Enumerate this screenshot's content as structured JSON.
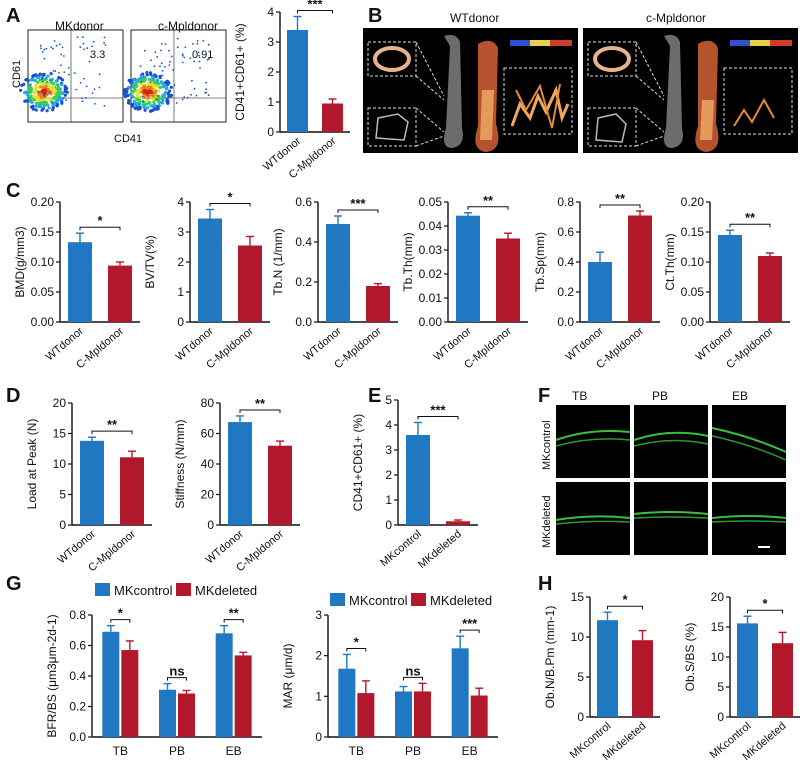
{
  "panels": {
    "A": "A",
    "B": "B",
    "C": "C",
    "D": "D",
    "E": "E",
    "F": "F",
    "G": "G",
    "H": "H"
  },
  "colors": {
    "blue": "#1f78c1",
    "red": "#b2182b"
  },
  "flow": {
    "left_title": "MKdonor",
    "right_title": "c-Mpldonor",
    "left_value": "3.3",
    "right_value": "0.91",
    "xlabel": "CD41",
    "ylabel": "CD61"
  },
  "microct": {
    "left_title": "WTdonor",
    "right_title": "c-Mpldonor"
  },
  "fluor": {
    "columns": [
      "TB",
      "PB",
      "EB"
    ],
    "rows": [
      "MKcontrol",
      "MKdeleted"
    ]
  },
  "legend": {
    "control": "MKcontrol",
    "deleted": "MKdeleted"
  },
  "chart_data": [
    {
      "id": "A_bar",
      "type": "bar",
      "categories": [
        "WTdonor",
        "C-Mpldonor"
      ],
      "values": [
        3.4,
        0.95
      ],
      "errors": [
        0.45,
        0.15
      ],
      "ylabel": "CD41+CD61+ (%)",
      "ylim": [
        0,
        4
      ],
      "yticks": [
        0,
        1,
        2,
        3,
        4
      ],
      "sig": "***"
    },
    {
      "id": "C1",
      "type": "bar",
      "categories": [
        "WTdonor",
        "C-Mpldonor"
      ],
      "values": [
        0.133,
        0.094
      ],
      "errors": [
        0.015,
        0.006
      ],
      "ylabel": "BMD(g/mm3)",
      "ylim": [
        0,
        0.2
      ],
      "yticks": [
        "0.00",
        "0.05",
        "0.10",
        "0.15",
        "0.20"
      ],
      "sig": "*"
    },
    {
      "id": "C2",
      "type": "bar",
      "categories": [
        "WTdonor",
        "C-Mpldonor"
      ],
      "values": [
        3.45,
        2.55
      ],
      "errors": [
        0.3,
        0.3
      ],
      "ylabel": "BV/TV(%)",
      "ylim": [
        0,
        4
      ],
      "yticks": [
        "0",
        "1",
        "2",
        "3",
        "4"
      ],
      "sig": "*"
    },
    {
      "id": "C3",
      "type": "bar",
      "categories": [
        "WTdonor",
        "C-Mpldonor"
      ],
      "values": [
        0.49,
        0.18
      ],
      "errors": [
        0.04,
        0.012
      ],
      "ylabel": "Tb.N (1/mm)",
      "ylim": [
        0,
        0.6
      ],
      "yticks": [
        "0.0",
        "0.2",
        "0.4",
        "0.6"
      ],
      "sig": "***"
    },
    {
      "id": "C4",
      "type": "bar",
      "categories": [
        "WTdonor",
        "C-Mpldonor"
      ],
      "values": [
        0.0443,
        0.0348
      ],
      "errors": [
        0.0012,
        0.0022
      ],
      "ylabel": "Tb.Th(mm)",
      "ylim": [
        0,
        0.05
      ],
      "yticks": [
        "0.00",
        "0.01",
        "0.02",
        "0.03",
        "0.04",
        "0.05"
      ],
      "sig": "**"
    },
    {
      "id": "C5",
      "type": "bar",
      "categories": [
        "WTdonor",
        "C-Mpldonor"
      ],
      "values": [
        0.4,
        0.71
      ],
      "errors": [
        0.065,
        0.03
      ],
      "ylabel": "Tb.Sp(mm)",
      "ylim": [
        0,
        0.8
      ],
      "yticks": [
        "0.0",
        "0.2",
        "0.4",
        "0.6",
        "0.8"
      ],
      "sig": "**"
    },
    {
      "id": "C6",
      "type": "bar",
      "categories": [
        "WTdonor",
        "C-Mpldonor"
      ],
      "values": [
        0.145,
        0.11
      ],
      "errors": [
        0.008,
        0.005
      ],
      "ylabel": "Ct.Th(mm)",
      "ylim": [
        0,
        0.2
      ],
      "yticks": [
        "0.00",
        "0.05",
        "0.10",
        "0.15",
        "0.20"
      ],
      "sig": "**"
    },
    {
      "id": "D1",
      "type": "bar",
      "categories": [
        "WTdonor",
        "C-Mpldonor"
      ],
      "values": [
        13.8,
        11.1
      ],
      "errors": [
        0.6,
        1.0
      ],
      "ylabel": "Load at Peak (N)",
      "ylim": [
        0,
        20
      ],
      "yticks": [
        "0",
        "5",
        "10",
        "15",
        "20"
      ],
      "sig": "**"
    },
    {
      "id": "D2",
      "type": "bar",
      "categories": [
        "WTdonor",
        "C-Mpldonor"
      ],
      "values": [
        67.5,
        52
      ],
      "errors": [
        4.0,
        3.0
      ],
      "ylabel": "Stiffness (N/mm)",
      "ylim": [
        0,
        80
      ],
      "yticks": [
        "0",
        "20",
        "40",
        "60",
        "80"
      ],
      "sig": "**"
    },
    {
      "id": "E",
      "type": "bar",
      "categories": [
        "MKcontrol",
        "MKdeleted"
      ],
      "values": [
        3.6,
        0.15
      ],
      "errors": [
        0.5,
        0.05
      ],
      "ylabel": "CD41+CD61+ (%)",
      "ylim": [
        0,
        5
      ],
      "yticks": [
        "0",
        "1",
        "2",
        "3",
        "4",
        "5"
      ],
      "sig": "***"
    },
    {
      "id": "G1",
      "type": "bar",
      "categories": [
        "TB",
        "PB",
        "EB"
      ],
      "series": [
        {
          "name": "MKcontrol",
          "values": [
            0.69,
            0.31,
            0.68
          ],
          "errors": [
            0.04,
            0.04,
            0.05
          ]
        },
        {
          "name": "MKdeleted",
          "values": [
            0.57,
            0.285,
            0.535
          ],
          "errors": [
            0.06,
            0.02,
            0.02
          ]
        }
      ],
      "ylabel": "BFR/BS (μm3μm-2d-1)",
      "ylim": [
        0,
        0.8
      ],
      "yticks": [
        "0.0",
        "0.2",
        "0.4",
        "0.6",
        "0.8"
      ],
      "sig": [
        "*",
        "ns",
        "**"
      ]
    },
    {
      "id": "G2",
      "type": "bar",
      "categories": [
        "TB",
        "PB",
        "EB"
      ],
      "series": [
        {
          "name": "MKcontrol",
          "values": [
            1.68,
            1.12,
            2.18
          ],
          "errors": [
            0.35,
            0.12,
            0.3
          ]
        },
        {
          "name": "MKdeleted",
          "values": [
            1.08,
            1.12,
            1.02
          ],
          "errors": [
            0.3,
            0.2,
            0.18
          ]
        }
      ],
      "ylabel": "MAR (μm/d)",
      "ylim": [
        0,
        3
      ],
      "yticks": [
        "0",
        "1",
        "2",
        "3"
      ],
      "sig": [
        "*",
        "ns",
        "***"
      ]
    },
    {
      "id": "H1",
      "type": "bar",
      "categories": [
        "MKcontrol",
        "MKdeleted"
      ],
      "values": [
        12.1,
        9.6
      ],
      "errors": [
        1.0,
        1.2
      ],
      "ylabel": "Ob.N/B.Pm (mm-1)",
      "ylim": [
        0,
        15
      ],
      "yticks": [
        "0",
        "5",
        "10",
        "15"
      ],
      "sig": "*"
    },
    {
      "id": "H2",
      "type": "bar",
      "categories": [
        "MKcontrol",
        "MKdeleted"
      ],
      "values": [
        15.6,
        12.3
      ],
      "errors": [
        1.2,
        1.8
      ],
      "ylabel": "Ob.S/BS (%)",
      "ylim": [
        0,
        20
      ],
      "yticks": [
        "0",
        "5",
        "10",
        "15",
        "20"
      ],
      "sig": "*"
    }
  ]
}
